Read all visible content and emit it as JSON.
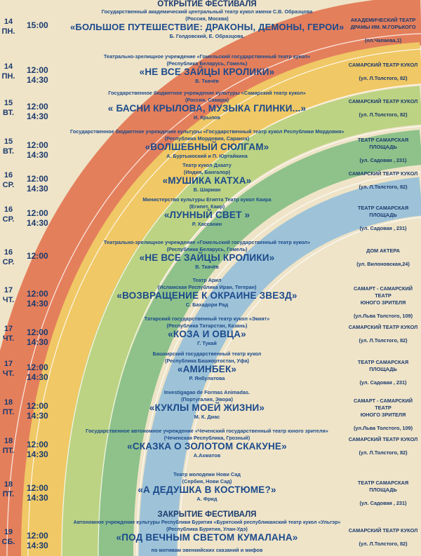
{
  "header_open": "ОТКРЫТИЕ ФЕСТИВАЛЯ",
  "header_close": "ЗАКРЫТИЕ ФЕСТИВАЛЯ",
  "footer_note": "по мотивам эвенкийских сказаний и мифов",
  "colors": {
    "background": "#efe4c8",
    "text": "#1b4a8c",
    "band_red": "#e47f5c",
    "band_yellow": "#f0c865",
    "band_lightgreen": "#bcd383",
    "band_green": "#8ec28a",
    "band_blue": "#9ec3d8"
  },
  "events": [
    {
      "day": "14",
      "wd": "ПН.",
      "times": [
        "15:00"
      ],
      "org": "Государственный академический центральный театр кукол имени С.В. Образцова",
      "country": "(Россия, Москва)",
      "title": "«БОЛЬШОЕ ПУТЕШЕСТВИЕ: ДРАКОНЫ, ДЕМОНЫ, ГЕРОИ»",
      "author": "Б. Голдовский, Е. Образцова.",
      "venue": [
        "АКАДЕМИЧЕСКИЙ ТЕАТР",
        "ДРАМЫ ИМ. М.ГОРЬКОГО"
      ],
      "addr": "(пл.Чапаева,1)"
    },
    {
      "day": "14",
      "wd": "ПН.",
      "times": [
        "12:00",
        "14:30"
      ],
      "org": "Театрально-зрелищное учреждение «Гомельский государственный театр кукол»",
      "country": "(Республика Беларусь, Гомель)",
      "title": "«НЕ ВСЕ ЗАЙЦЫ КРОЛИКИ»",
      "author": "В. Ткачёв",
      "venue": [
        "САМАРСКИЙ ТЕАТР КУКОЛ"
      ],
      "addr": "(ул. Л.Толстого, 82)"
    },
    {
      "day": "15",
      "wd": "ВТ.",
      "times": [
        "12:00",
        "14:30"
      ],
      "org": "Государственное бюджетное учреждение культуры «Самарский театр кукол»",
      "country": "(Россия, Самара)",
      "title": "« БАСНИ КРЫЛОВА, МУЗЫКА ГЛИНКИ...»",
      "author": "И. Крылов",
      "venue": [
        "САМАРСКИЙ ТЕАТР КУКОЛ"
      ],
      "addr": "(ул. Л.Толстого, 82)"
    },
    {
      "day": "15",
      "wd": "ВТ.",
      "times": [
        "12:00",
        "14:30"
      ],
      "org": "Государственное бюджетное учреждение культуры «Государственный театр кукол Республики Мордовия»",
      "country": "(Республика Мордовия, Саранск)",
      "title": "«ВОЛШЕБНЫЙ СЮЛГАМ»",
      "author": "А. Буртыкоский и П. Юртайкина",
      "venue": [
        "ТЕАТР САМАРСКАЯ ПЛОЩАДЬ"
      ],
      "addr": "(ул. Садовая , 231)"
    },
    {
      "day": "16",
      "wd": "СР.",
      "times": [
        "12:00",
        "14:30"
      ],
      "org": "Театр кукол Дхаату",
      "country": "(Индия, Бангалор)",
      "title": "«МУШИКА КАТХА»",
      "author": "В. Шарман",
      "venue": [
        "САМАРСКИЙ ТЕАТР КУКОЛ"
      ],
      "addr": "(ул. Л.Толстого, 82)"
    },
    {
      "day": "16",
      "wd": "СР.",
      "times": [
        "12:00",
        "14:30"
      ],
      "org": "Министерство культуры Египта Театр кукол Каира",
      "country": "(Египет, Каир)",
      "title": "«ЛУННЫЙ СВЕТ »",
      "author": "Р. Хассанин",
      "venue": [
        "ТЕАТР САМАРСКАЯ ПЛОЩАДЬ"
      ],
      "addr": "(ул. Садовая , 231)"
    },
    {
      "day": "16",
      "wd": "СР.",
      "times": [
        "12:00"
      ],
      "org": "Театрально-зрелищное учреждение «Гомельский государственный театр кукол»",
      "country": "(Республика Беларусь, Гомель)",
      "title": "«НЕ ВСЕ ЗАЙЦЫ КРОЛИКИ»",
      "author": "В. Ткачёв",
      "venue": [
        "ДОМ АКТЕРА"
      ],
      "addr": "(ул. Вилоновская,24)"
    },
    {
      "day": "17",
      "wd": "ЧТ.",
      "times": [
        "12:00",
        "14:30"
      ],
      "org": "Театр Арил",
      "country": "(Исламская Республика Иран, Тегеран)",
      "title": "«ВОЗВРАЩЕНИЕ К ОКРАИНЕ ЗВЕЗД»",
      "author": "С. Бахадори Рад",
      "venue": [
        "САМАРТ - САМАРСКИЙ ТЕАТР",
        "ЮНОГО ЗРИТЕЛЯ"
      ],
      "addr": "(ул.Льва Толстого, 109)"
    },
    {
      "day": "17",
      "wd": "ЧТ.",
      "times": [
        "12:00",
        "14:30"
      ],
      "org": "Татарский государственный театр кукол «Экият»",
      "country": "(Республика Татарстан, Казань)",
      "title": "«КОЗА И ОВЦА»",
      "author": "Г. Тукай",
      "venue": [
        "САМАРСКИЙ ТЕАТР КУКОЛ"
      ],
      "addr": "(ул. Л.Толстого, 82)"
    },
    {
      "day": "17",
      "wd": "ЧТ.",
      "times": [
        "12:00",
        "14:30"
      ],
      "org": "Башкирский государственный театр кукол",
      "country": "(Республика Башкортостан, Уфа)",
      "title": "«АМИНБЕК»",
      "author": "Р. Янбулатова",
      "venue": [
        "ТЕАТР САМАРСКАЯ ПЛОЩАДЬ"
      ],
      "addr": "(ул. Садовая , 231)"
    },
    {
      "day": "18",
      "wd": "ПТ.",
      "times": [
        "12:00",
        "14:30"
      ],
      "org": "Investigagao de Formas Animadas.",
      "country": "(Португалия, Эвора)",
      "title": "«КУКЛЫ МОЕЙ ЖИЗНИ»",
      "author": "М. К. Диас",
      "venue": [
        "САМАРТ - САМАРСКИЙ ТЕАТР",
        "ЮНОГО ЗРИТЕЛЯ"
      ],
      "addr": "(ул.Льва Толстого, 109)"
    },
    {
      "day": "18",
      "wd": "ПТ.",
      "times": [
        "12:00",
        "14:30"
      ],
      "org": "Государственное автономное учреждение «Чеченский государственный театр юного зрителя»",
      "country": "(Чеченская Республика, Грозный)",
      "title": "«СКАЗКА О ЗОЛОТОМ СКАКУНЕ»",
      "author": "А.Ахматов",
      "venue": [
        "САМАРСКИЙ ТЕАТР КУКОЛ"
      ],
      "addr": "(ул. Л.Толстого, 82)"
    },
    {
      "day": "18",
      "wd": "ПТ.",
      "times": [
        "12:00",
        "14:30"
      ],
      "org": "Театр молодежи Нови Сад",
      "country": "(Сербия, Нови Сад)",
      "title": "«А ДЕДУШКА В КОСТЮМЕ?»",
      "author": "А. Фрид",
      "venue": [
        "ТЕАТР САМАРСКАЯ ПЛОЩАДЬ"
      ],
      "addr": "(ул. Садовая , 231)"
    },
    {
      "day": "19",
      "wd": "СБ.",
      "times": [
        "12:00",
        "14:30"
      ],
      "org": "Автономное учреждение культуры Республики Бурятия «Бурятский республиканский театр кукол «Ульгэр»",
      "country": "(Республика Бурятия, Улан-Удэ)",
      "title": "«ПОД ВЕЧНЫМ СВЕТОМ КУМАЛАНА»",
      "author": "",
      "venue": [
        "САМАРСКИЙ ТЕАТР КУКОЛ"
      ],
      "addr": "(ул. Л.Толстого, 82)"
    }
  ]
}
